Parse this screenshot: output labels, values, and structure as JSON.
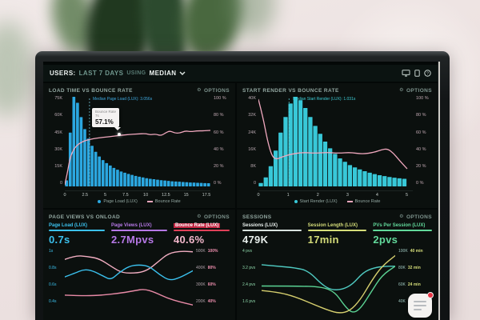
{
  "header": {
    "users": "USERS:",
    "range": "LAST 7 DAYS",
    "using": "USING",
    "metric": "MEDIAN",
    "icons": [
      "monitor-icon",
      "tablet-icon",
      "help-icon"
    ]
  },
  "panels": {
    "load_time": {
      "title": "LOAD TIME VS BOUNCE RATE",
      "options": "OPTIONS",
      "annotation": "Median Page Load (LUX): 3.056s",
      "tooltip": {
        "label": "Bounce Rate",
        "x": "7s",
        "value": "57.1%"
      },
      "legend": [
        {
          "label": "Page Load (LUX)"
        },
        {
          "label": "Bounce Rate"
        }
      ]
    },
    "start_render": {
      "title": "START RENDER VS BOUNCE RATE",
      "options": "OPTIONS",
      "annotation": "Median Start Render (LUX): 1.031s",
      "legend": [
        {
          "label": "Start Render (LUX)"
        },
        {
          "label": "Bounce Rate"
        }
      ]
    },
    "page_views": {
      "title": "PAGE VIEWS VS ONLOAD",
      "options": "OPTIONS",
      "metrics": [
        {
          "label": "Page Load (LUX)",
          "value": "0.7s",
          "color": "#3bc1ee"
        },
        {
          "label": "Page Views (LUX)",
          "value": "2.7Mpvs",
          "color": "#b678e6"
        },
        {
          "label": "Bounce Rate (LUX)",
          "value": "40.6%",
          "color": "#e04058"
        }
      ],
      "left_ticks": [
        "1s",
        "0.8s",
        "0.6s",
        "0.4s"
      ],
      "right_ticks": [
        [
          "500K",
          "100%"
        ],
        [
          "400K",
          "80%"
        ],
        [
          "300K",
          "60%"
        ],
        [
          "200K",
          "40%"
        ]
      ]
    },
    "sessions": {
      "title": "SESSIONS",
      "options": "OPTIONS",
      "metrics": [
        {
          "label": "Sessions (LUX)",
          "value": "479K",
          "color": "#e8efec"
        },
        {
          "label": "Session Length (LUX)",
          "value": "17min",
          "color": "#d6de7a"
        },
        {
          "label": "PVs Per Session (LUX)",
          "value": "2pvs",
          "color": "#62d99b"
        }
      ],
      "left_ticks": [
        "4 pvs",
        "3.2 pvs",
        "2.4 pvs",
        "1.6 pvs"
      ],
      "right_ticks": [
        [
          "100K",
          "40 min"
        ],
        [
          "80K",
          "32 min"
        ],
        [
          "60K",
          "24 min"
        ],
        [
          "40K",
          ""
        ]
      ]
    }
  },
  "chart_data": [
    {
      "id": "chart-load-time",
      "type": "bar",
      "title": "LOAD TIME VS BOUNCE RATE",
      "xlabel": "",
      "ylabel": "",
      "xlim": [
        0,
        18
      ],
      "ylim_left": [
        0,
        75
      ],
      "ylim_right": [
        0,
        100
      ],
      "x_ticks": [
        "0",
        "2.5",
        "5",
        "7.5",
        "10",
        "12.5",
        "15",
        "17.5"
      ],
      "y_left_ticks": [
        "75K",
        "60K",
        "45K",
        "30K",
        "15K",
        "0"
      ],
      "y_right_ticks": [
        "100 %",
        "80 %",
        "60 %",
        "40 %",
        "20 %",
        "0 %"
      ],
      "bar_color": "#2ba7e0",
      "line_color": "#f0a8be",
      "median_color": "#7fd3ea",
      "median_x": 3.056,
      "bar_x_start": 0,
      "bar_x_step": 0.45,
      "bar_values_k": [
        5,
        45,
        75,
        70,
        58,
        48,
        40,
        34,
        29,
        25,
        22,
        19.5,
        17.5,
        15.5,
        14,
        12.5,
        11.5,
        10.5,
        9.6,
        8.8,
        8.1,
        7.5,
        6.9,
        6.4,
        6,
        5.6,
        5.2,
        4.9,
        4.6,
        4.3,
        4.1,
        3.9,
        3.7,
        3.5,
        3.3,
        3.2,
        3,
        2.9,
        2.8,
        2.7
      ],
      "bounce_line_pct": [
        [
          0,
          2
        ],
        [
          0.3,
          14
        ],
        [
          0.6,
          30
        ],
        [
          1,
          40
        ],
        [
          1.5,
          46
        ],
        [
          2,
          49
        ],
        [
          2.5,
          51
        ],
        [
          3.1,
          52.5
        ],
        [
          4,
          54
        ],
        [
          5,
          55
        ],
        [
          6,
          56
        ],
        [
          7,
          57.1
        ],
        [
          8,
          58
        ],
        [
          9,
          58.5
        ],
        [
          10,
          59
        ],
        [
          10.6,
          57.5
        ],
        [
          11.2,
          58.5
        ],
        [
          11.9,
          56.5
        ],
        [
          12.5,
          60
        ],
        [
          13,
          62
        ],
        [
          13.6,
          59.5
        ],
        [
          14.2,
          59.5
        ],
        [
          14.9,
          62
        ],
        [
          15.6,
          61
        ],
        [
          16.3,
          62
        ],
        [
          17.1,
          62
        ],
        [
          18,
          62.5
        ]
      ],
      "legend_position": "bottom"
    },
    {
      "id": "chart-start-render",
      "type": "bar",
      "title": "START RENDER VS BOUNCE RATE",
      "xlabel": "",
      "ylabel": "",
      "xlim": [
        0,
        5.2
      ],
      "ylim_left": [
        0,
        40
      ],
      "ylim_right": [
        0,
        100
      ],
      "x_ticks": [
        "0",
        "1",
        "2",
        "3",
        "4",
        "5"
      ],
      "y_left_ticks": [
        "40K",
        "32K",
        "24K",
        "16K",
        "8K",
        "0"
      ],
      "y_right_ticks": [
        "100 %",
        "80 %",
        "60 %",
        "40 %",
        "20 %",
        "0 %"
      ],
      "bar_color": "#38c8d8",
      "line_color": "#f0a8be",
      "median_color": "#5fd4dc",
      "median_x": 1.031,
      "bar_x_start": 0,
      "bar_x_step": 0.1667,
      "bar_values_k": [
        1.5,
        4,
        9,
        16,
        24,
        31,
        37,
        40,
        38.5,
        35,
        31,
        27,
        23.5,
        20,
        17,
        14.5,
        12.5,
        11,
        9.5,
        8.5,
        7.6,
        6.8,
        6.1,
        5.5,
        5,
        4.6,
        4.2,
        3.9,
        3.6,
        3.4
      ],
      "bounce_line_pct": [
        [
          0,
          97
        ],
        [
          0.15,
          78
        ],
        [
          0.3,
          52
        ],
        [
          0.45,
          34
        ],
        [
          0.6,
          30
        ],
        [
          0.8,
          33
        ],
        [
          1.1,
          36
        ],
        [
          1.5,
          38
        ],
        [
          1.9,
          37
        ],
        [
          2.3,
          38
        ],
        [
          2.7,
          37
        ],
        [
          3.1,
          38
        ],
        [
          3.5,
          36
        ],
        [
          3.9,
          38
        ],
        [
          4.15,
          41
        ],
        [
          4.35,
          42
        ],
        [
          4.55,
          37
        ],
        [
          4.75,
          29
        ],
        [
          5,
          20
        ]
      ],
      "legend_position": "bottom"
    },
    {
      "id": "spark-page-views",
      "type": "line",
      "title": "PAGE VIEWS VS ONLOAD sparklines",
      "series": [
        {
          "name": "bounce-rate",
          "color": "#f2aec2",
          "points": [
            [
              0,
              15
            ],
            [
              8,
              10
            ],
            [
              17,
              11
            ],
            [
              27,
              14
            ],
            [
              37,
              25
            ],
            [
              45,
              33
            ],
            [
              57,
              33
            ],
            [
              65,
              29
            ],
            [
              73,
              18
            ],
            [
              81,
              7
            ],
            [
              91,
              4
            ],
            [
              100,
              5
            ]
          ]
        },
        {
          "name": "page-load",
          "color": "#3bc1ee",
          "points": [
            [
              0,
              38
            ],
            [
              8,
              33
            ],
            [
              15,
              28
            ],
            [
              22,
              30
            ],
            [
              30,
              37
            ],
            [
              36,
              42
            ],
            [
              42,
              33
            ],
            [
              50,
              24
            ],
            [
              58,
              22
            ],
            [
              66,
              24
            ],
            [
              74,
              35
            ],
            [
              82,
              43
            ],
            [
              90,
              39
            ],
            [
              100,
              30
            ]
          ]
        },
        {
          "name": "page-views",
          "color": "#e88aa6",
          "points": [
            [
              0,
              62
            ],
            [
              15,
              63
            ],
            [
              30,
              62
            ],
            [
              45,
              59
            ],
            [
              55,
              56
            ],
            [
              62,
              54
            ],
            [
              70,
              58
            ],
            [
              80,
              66
            ],
            [
              90,
              71
            ],
            [
              100,
              75
            ]
          ]
        }
      ]
    },
    {
      "id": "spark-sessions",
      "type": "line",
      "title": "SESSIONS sparklines",
      "series": [
        {
          "name": "pvs-per-session",
          "color": "#4fc9c0",
          "points": [
            [
              0,
              22
            ],
            [
              12,
              24
            ],
            [
              25,
              26
            ],
            [
              35,
              30
            ],
            [
              45,
              48
            ],
            [
              52,
              55
            ],
            [
              60,
              55
            ],
            [
              68,
              48
            ],
            [
              76,
              32
            ],
            [
              84,
              26
            ],
            [
              92,
              24
            ],
            [
              100,
              24
            ]
          ]
        },
        {
          "name": "sessions",
          "color": "#5bd394",
          "points": [
            [
              0,
              50
            ],
            [
              25,
              50
            ],
            [
              45,
              51
            ],
            [
              55,
              58
            ],
            [
              62,
              76
            ],
            [
              68,
              86
            ],
            [
              74,
              80
            ],
            [
              82,
              58
            ],
            [
              90,
              36
            ],
            [
              100,
              24
            ]
          ]
        },
        {
          "name": "session-length",
          "color": "#d6cf6e",
          "points": [
            [
              0,
              56
            ],
            [
              12,
              58
            ],
            [
              25,
              64
            ],
            [
              40,
              75
            ],
            [
              50,
              82
            ],
            [
              58,
              86
            ],
            [
              66,
              83
            ],
            [
              74,
              68
            ],
            [
              82,
              44
            ],
            [
              90,
              24
            ],
            [
              100,
              10
            ]
          ]
        }
      ]
    }
  ],
  "colors": {
    "bar_blue": "#2ba7e0",
    "bar_teal": "#38c8d8",
    "line_pink": "#f0a8be",
    "accent_cyan": "#3bc1ee",
    "accent_purple": "#b678e6",
    "accent_red": "#c22844",
    "accent_green": "#62d99b",
    "accent_yellow": "#d6de7a",
    "badge_red": "#e83344",
    "screen_bg": "#040807",
    "panel_bg": "#0b100e"
  }
}
